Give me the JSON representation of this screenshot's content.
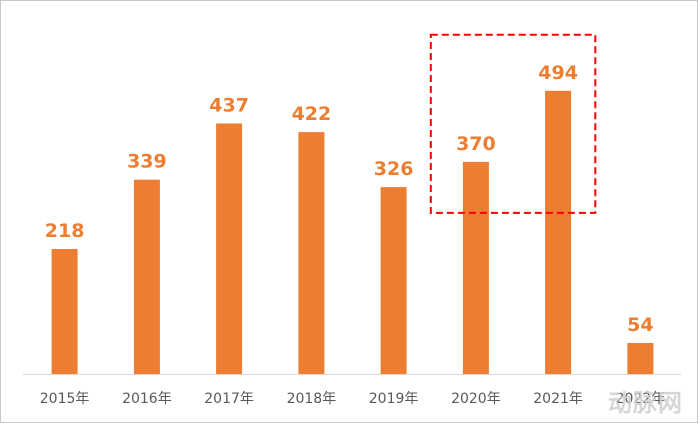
{
  "chart_data": {
    "type": "bar",
    "categories": [
      "2015年",
      "2016年",
      "2017年",
      "2018年",
      "2019年",
      "2020年",
      "2021年",
      "2022年"
    ],
    "values": [
      218,
      339,
      437,
      422,
      326,
      370,
      494,
      54
    ],
    "title": "",
    "xlabel": "",
    "ylabel": "",
    "ylim": [
      0,
      560
    ],
    "grid": false,
    "legend": "none",
    "data_labels": true,
    "bar_color": "#ED7D31",
    "label_color": "#ED7D31",
    "axis_color": "#D9D9D9",
    "highlight": {
      "categories": [
        "2020年",
        "2021年"
      ],
      "style": "dashed-box",
      "color": "#FF0000"
    }
  },
  "watermark": {
    "text": "动脉网",
    "logo": "dongmai-logo"
  }
}
